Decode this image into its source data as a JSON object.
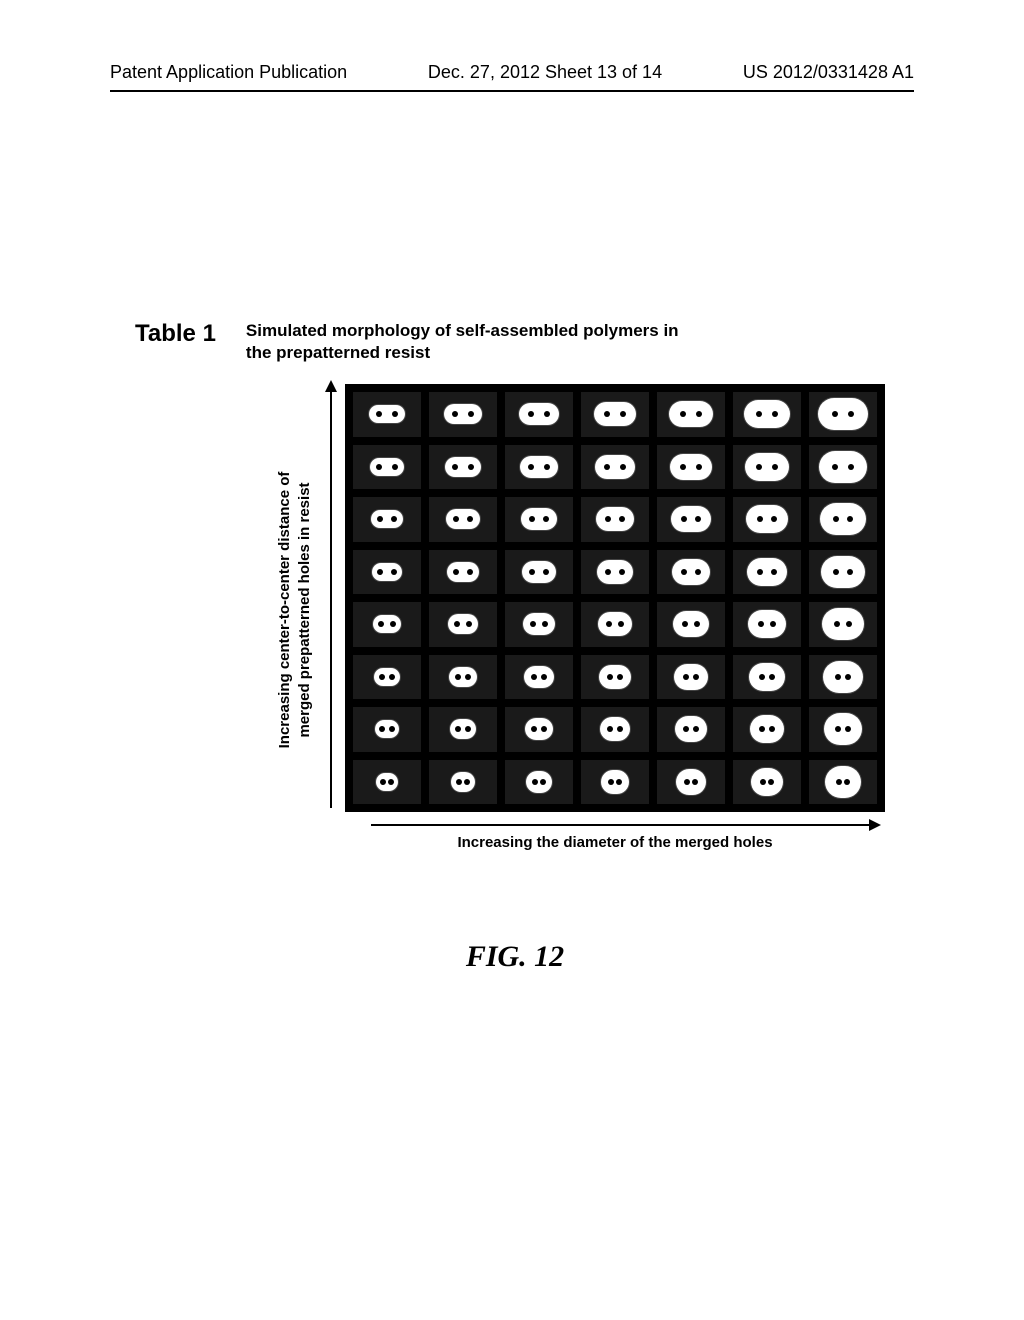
{
  "header": {
    "left": "Patent Application Publication",
    "center": "Dec. 27, 2012  Sheet 13 of 14",
    "right": "US 2012/0331428 A1"
  },
  "table": {
    "label": "Table 1",
    "caption": "Simulated morphology of self-assembled polymers in the prepatterned resist"
  },
  "axes": {
    "y": "Increasing center-to-center distance of\nmerged prepatterned holes in resist",
    "x": "Increasing the diameter of the merged holes"
  },
  "figureLabel": "FIG. 12",
  "grid": {
    "rows": 8,
    "cols": 7,
    "background": "#000000",
    "cellBg": "#1a1a1a",
    "stadiumFill": "#ffffff",
    "holeFill": "#000000",
    "colDiameters": [
      18,
      20,
      22,
      24,
      26,
      28,
      32
    ],
    "rowSpreads": [
      4,
      6,
      8,
      10,
      12,
      14,
      16,
      18
    ],
    "holeRadius": 3
  },
  "colors": {
    "pageBg": "#ffffff",
    "text": "#000000",
    "rule": "#000000"
  }
}
